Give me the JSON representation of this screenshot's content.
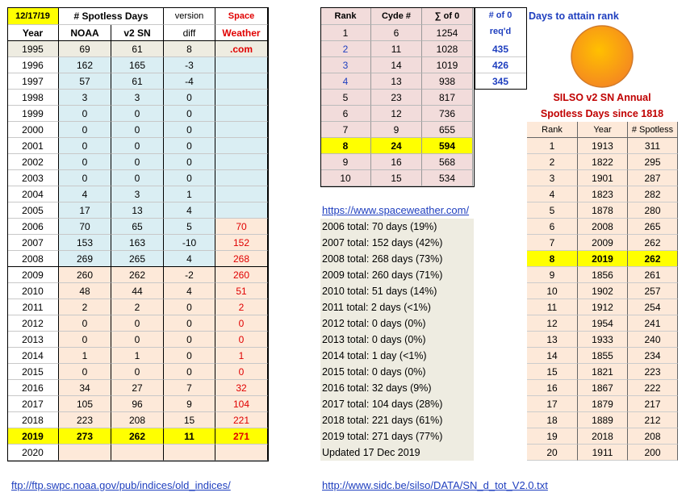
{
  "left_table": {
    "header_row1": [
      "12/17/19",
      "# Spotless Days",
      "version",
      "Space"
    ],
    "header_row2": [
      "Year",
      "NOAA",
      "v2 SN",
      "diff",
      "Weather"
    ],
    "rows": [
      [
        1995,
        69,
        61,
        8,
        ".com"
      ],
      [
        1996,
        162,
        165,
        -3
      ],
      [
        1997,
        57,
        61,
        -4
      ],
      [
        1998,
        3,
        3,
        0
      ],
      [
        1999,
        0,
        0,
        0
      ],
      [
        2000,
        0,
        0,
        0
      ],
      [
        2001,
        0,
        0,
        0
      ],
      [
        2002,
        0,
        0,
        0
      ],
      [
        2003,
        0,
        0,
        0
      ],
      [
        2004,
        4,
        3,
        1
      ],
      [
        2005,
        17,
        13,
        4
      ],
      [
        2006,
        70,
        65,
        5,
        70
      ],
      [
        2007,
        153,
        163,
        -10,
        152
      ],
      [
        2008,
        269,
        265,
        4,
        268
      ],
      [
        2009,
        260,
        262,
        -2,
        260
      ],
      [
        2010,
        48,
        44,
        4,
        51
      ],
      [
        2011,
        2,
        2,
        0,
        2
      ],
      [
        2012,
        0,
        0,
        0,
        0
      ],
      [
        2013,
        0,
        0,
        0,
        0
      ],
      [
        2014,
        1,
        1,
        0,
        1
      ],
      [
        2015,
        0,
        0,
        0,
        0
      ],
      [
        2016,
        34,
        27,
        7,
        32
      ],
      [
        2017,
        105,
        96,
        9,
        104
      ],
      [
        2018,
        223,
        208,
        15,
        221
      ],
      [
        2019,
        273,
        262,
        11,
        271
      ],
      [
        2020
      ]
    ],
    "link": "ftp://ftp.swpc.noaa.gov/pub/indices/old_indices/"
  },
  "rank_table": {
    "headers": [
      "Rank",
      "Cyde #",
      "∑ of 0"
    ],
    "rows": [
      [
        1,
        6,
        1254
      ],
      [
        2,
        11,
        1028
      ],
      [
        3,
        14,
        1019
      ],
      [
        4,
        13,
        938
      ],
      [
        5,
        23,
        817
      ],
      [
        6,
        12,
        736
      ],
      [
        7,
        9,
        655
      ],
      [
        8,
        24,
        594
      ],
      [
        9,
        16,
        568
      ],
      [
        10,
        15,
        534
      ]
    ]
  },
  "required": {
    "headers": [
      "# of 0",
      "req'd"
    ],
    "values": [
      435,
      426,
      345
    ],
    "note": "Days to attain rank"
  },
  "silso": {
    "title_lines": [
      "SILSO v2 SN Annual",
      "Spotless Days since 1818"
    ],
    "headers": [
      "Rank",
      "Year",
      "# Spotless"
    ],
    "rows": [
      [
        1,
        1913,
        311
      ],
      [
        2,
        1822,
        295
      ],
      [
        3,
        1901,
        287
      ],
      [
        4,
        1823,
        282
      ],
      [
        5,
        1878,
        280
      ],
      [
        6,
        2008,
        265
      ],
      [
        7,
        2009,
        262
      ],
      [
        8,
        2019,
        262
      ],
      [
        9,
        1856,
        261
      ],
      [
        10,
        1902,
        257
      ],
      [
        11,
        1912,
        254
      ],
      [
        12,
        1954,
        241
      ],
      [
        13,
        1933,
        240
      ],
      [
        14,
        1855,
        234
      ],
      [
        15,
        1821,
        223
      ],
      [
        16,
        1867,
        222
      ],
      [
        17,
        1879,
        217
      ],
      [
        18,
        1889,
        212
      ],
      [
        19,
        2018,
        208
      ],
      [
        20,
        1911,
        200
      ]
    ],
    "link": "http://www.sidc.be/silso/DATA/SN_d_tot_V2.0.txt"
  },
  "spaceweather": {
    "link": "https://www.spaceweather.com/",
    "lines": [
      "2006 total: 70 days (19%)",
      "2007 total: 152 days (42%)",
      "2008 total: 268 days (73%)",
      "2009 total: 260 days (71%)",
      "2010 total: 51 days (14%)",
      "2011 total: 2 days (<1%)",
      "2012 total: 0 days (0%)",
      "2013 total: 0 days (0%)",
      "2014 total: 1 day (<1%)",
      "2015 total: 0 days (0%)",
      "2016 total: 32 days (9%)",
      "2017 total: 104 days (28%)",
      "2018 total: 221 days (61%)",
      "2019 total: 271 days (77%)",
      "Updated 17 Dec 2019"
    ]
  }
}
